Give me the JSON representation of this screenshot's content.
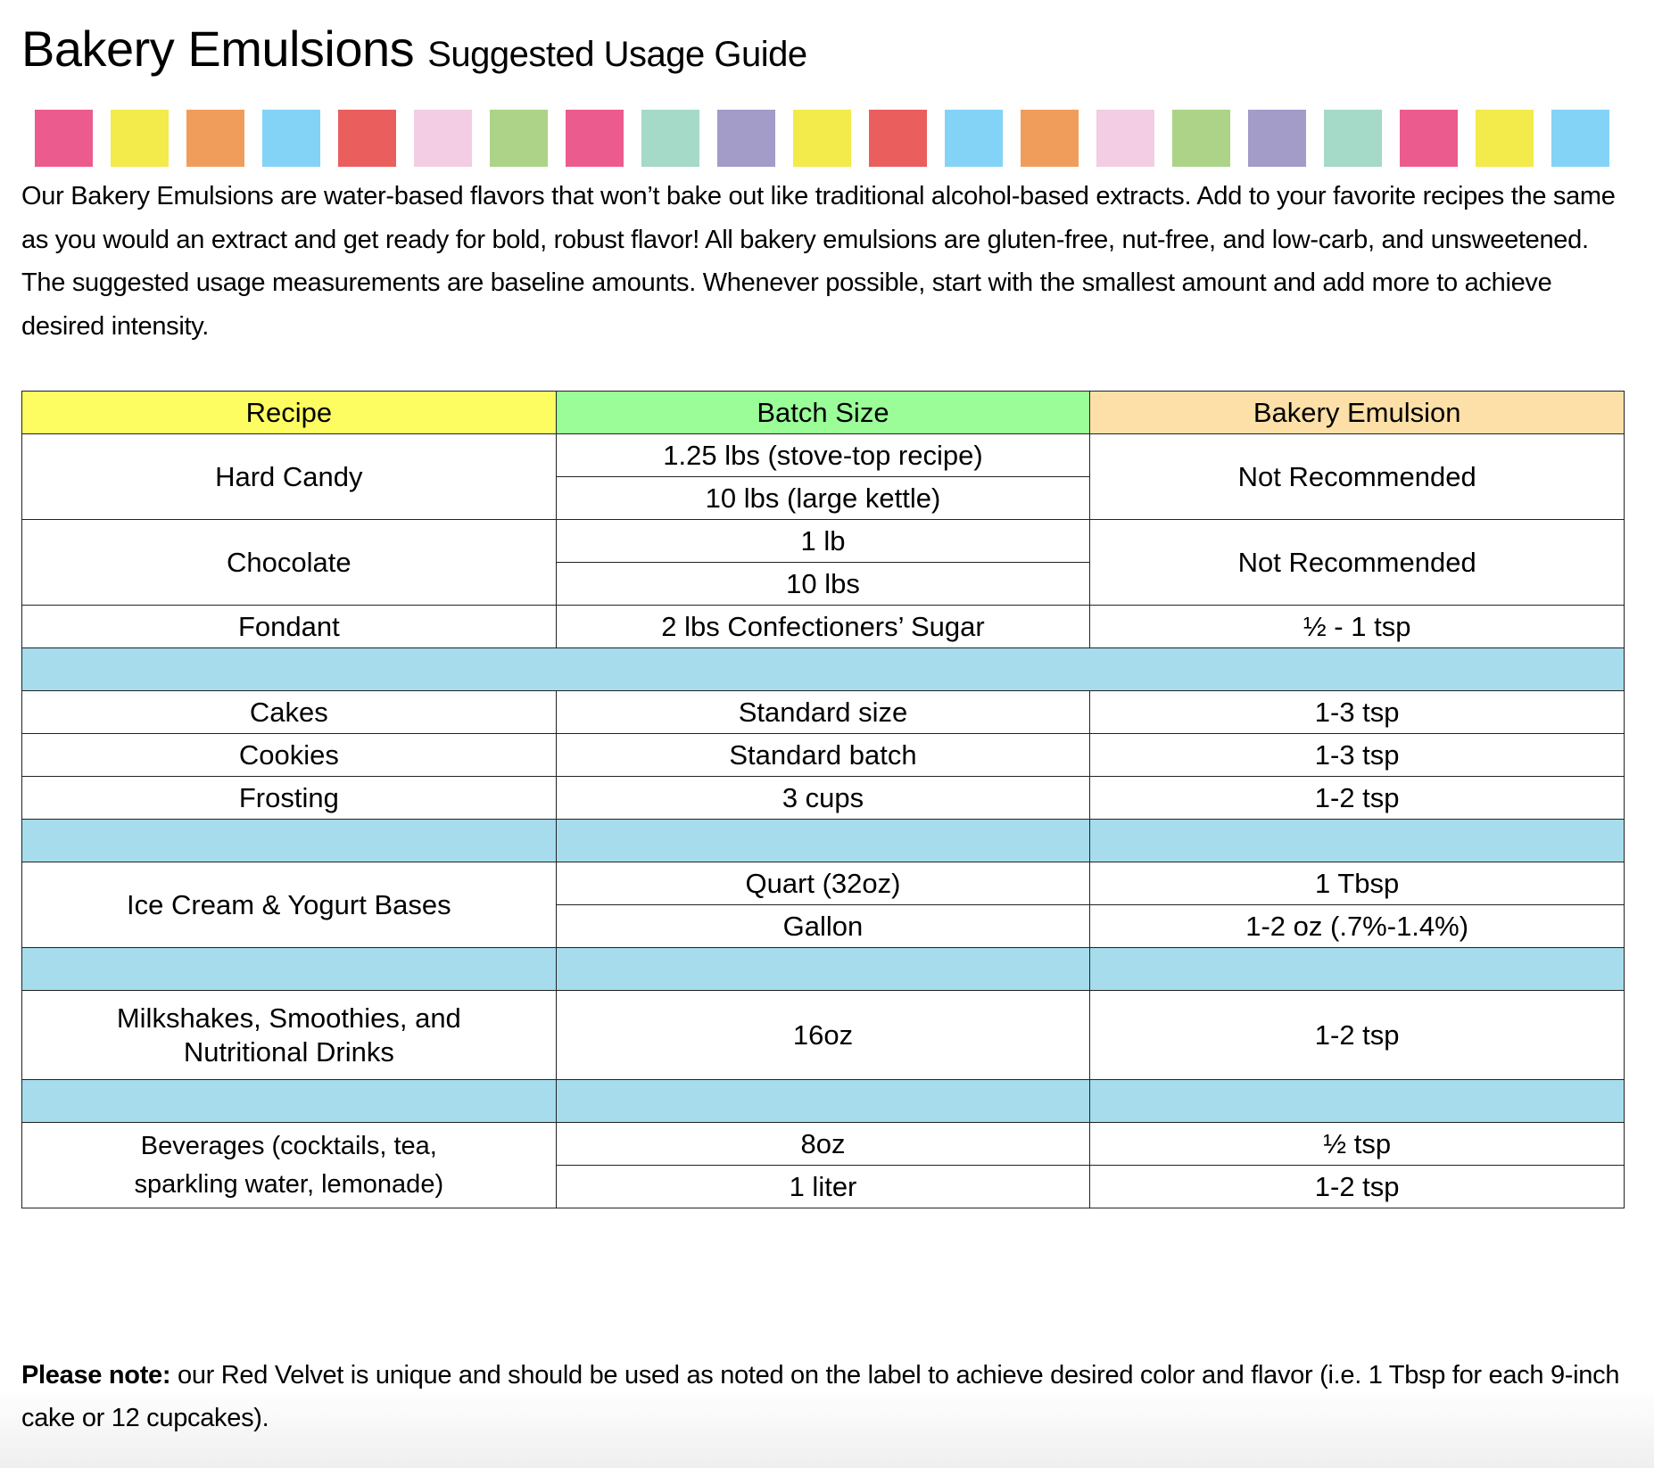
{
  "title": {
    "main": "Bakery Emulsions",
    "sub": "Suggested Usage Guide"
  },
  "swatch_colors": [
    "#ec5b8e",
    "#f3ea4b",
    "#f09d5b",
    "#83d3f7",
    "#ea5e5e",
    "#f2cde3",
    "#acd387",
    "#ec5b8e",
    "#a5d9c8",
    "#a39bc8",
    "#f3ea4b",
    "#ea5e5e",
    "#83d3f7",
    "#f09d5b",
    "#f2cde3",
    "#acd387",
    "#a39bc8",
    "#a5d9c8",
    "#ec5b8e",
    "#f3ea4b",
    "#83d3f7"
  ],
  "intro": "Our Bakery Emulsions are water-based flavors that won’t bake out like traditional alcohol-based extracts. Add to your favorite recipes the same as you would an extract and get ready for bold, robust flavor! All bakery emulsions are gluten-free, nut-free, and low-carb, and unsweetened. The suggested usage measurements are baseline amounts. Whenever possible, start with the smallest amount and add more to achieve desired intensity.",
  "table": {
    "headers": [
      "Recipe",
      "Batch Size",
      "Bakery Emulsion"
    ],
    "header_colors": [
      "#fdfd62",
      "#9afd98",
      "#fde0a7"
    ],
    "separator_color": "#a6dcec",
    "rows": {
      "hard_candy": {
        "recipe": "Hard Candy",
        "batch": [
          "1.25 lbs (stove-top recipe)",
          "10 lbs (large kettle)"
        ],
        "amount": "Not Recommended"
      },
      "chocolate": {
        "recipe": "Chocolate",
        "batch": [
          "1 lb",
          "10 lbs"
        ],
        "amount": "Not Recommended"
      },
      "fondant": {
        "recipe": "Fondant",
        "batch": "2 lbs Confectioners’ Sugar",
        "amount": "½ - 1 tsp"
      },
      "cakes": {
        "recipe": "Cakes",
        "batch": "Standard size",
        "amount": "1-3 tsp"
      },
      "cookies": {
        "recipe": "Cookies",
        "batch": "Standard batch",
        "amount": "1-3 tsp"
      },
      "frosting": {
        "recipe": "Frosting",
        "batch": "3 cups",
        "amount": "1-2 tsp"
      },
      "ice_cream": {
        "recipe": "Ice Cream & Yogurt Bases",
        "batch": [
          "Quart (32oz)",
          "Gallon"
        ],
        "amount": [
          "1 Tbsp",
          "1-2 oz (.7%-1.4%)"
        ]
      },
      "milkshakes": {
        "recipe": "Milkshakes, Smoothies, and Nutritional Drinks",
        "batch": "16oz",
        "amount": "1-2 tsp"
      },
      "beverages": {
        "recipe": "Beverages (cocktails, tea, sparkling water, lemonade)",
        "batch": [
          "8oz",
          "1 liter"
        ],
        "amount": [
          "½ tsp",
          "1-2 tsp"
        ]
      }
    }
  },
  "note": {
    "bold": "Please note:",
    "text": " our Red Velvet is unique and should be used as noted on the label to achieve desired color and flavor (i.e. 1 Tbsp for each 9-inch cake or 12 cupcakes)."
  }
}
